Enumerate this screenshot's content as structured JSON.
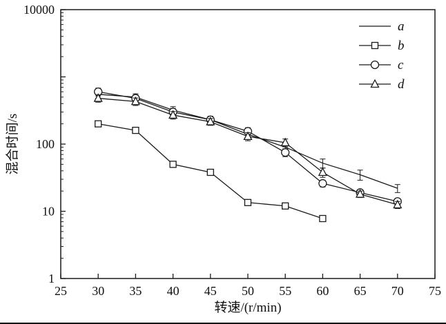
{
  "page": {
    "background": "#ffffff",
    "line_color": "#1a1a1a"
  },
  "chart_data": {
    "type": "line",
    "title": "",
    "xlabel": "转速/(r/min)",
    "ylabel": "混合时间/s",
    "xlim": [
      25,
      75
    ],
    "xticks": [
      25,
      30,
      35,
      40,
      45,
      50,
      55,
      60,
      65,
      70,
      75
    ],
    "yscale": "log",
    "ylim": [
      1,
      10000
    ],
    "yticks": [
      1,
      10,
      100,
      1000,
      10000
    ],
    "ytick_labels": [
      "1",
      "10",
      "100",
      "",
      "10000"
    ],
    "grid": false,
    "legend_position": "top-right",
    "legend_labels": [
      "a",
      "b",
      "c",
      "d"
    ],
    "series": [
      {
        "name": "a",
        "marker": "none",
        "x": [
          30,
          35,
          40,
          45,
          50,
          55,
          60,
          65,
          70
        ],
        "values": [
          550,
          500,
          320,
          230,
          140,
          90,
          52,
          35,
          22
        ],
        "errors": [
          70,
          60,
          40,
          30,
          18,
          12,
          8,
          6,
          3
        ]
      },
      {
        "name": "b",
        "marker": "square",
        "x": [
          30,
          35,
          40,
          45,
          50,
          55,
          60
        ],
        "values": [
          200,
          160,
          50,
          38,
          13.5,
          12,
          7.8
        ],
        "errors": [
          15,
          12,
          4,
          3,
          1,
          1,
          0.6
        ]
      },
      {
        "name": "c",
        "marker": "circle",
        "x": [
          30,
          35,
          40,
          45,
          50,
          55,
          60,
          65,
          70
        ],
        "values": [
          600,
          480,
          300,
          230,
          155,
          75,
          26,
          19,
          14
        ],
        "errors": [
          80,
          60,
          40,
          25,
          20,
          10,
          3,
          2,
          1.5
        ]
      },
      {
        "name": "d",
        "marker": "triangle",
        "x": [
          30,
          35,
          40,
          45,
          50,
          55,
          60,
          65,
          70
        ],
        "values": [
          480,
          430,
          270,
          215,
          130,
          105,
          38,
          18,
          12.5
        ],
        "errors": [
          60,
          55,
          35,
          25,
          18,
          14,
          6,
          2,
          1.5
        ]
      }
    ]
  }
}
